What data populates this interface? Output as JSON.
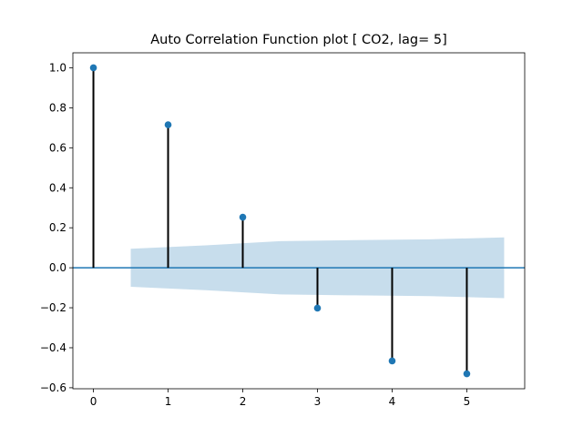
{
  "chart_data": {
    "type": "stem",
    "title": "Auto Correlation Function plot [ CO2, lag= 5]",
    "xlabel": "",
    "ylabel": "",
    "lags": [
      0,
      1,
      2,
      3,
      4,
      5
    ],
    "values": [
      1.0,
      0.715,
      0.253,
      -0.202,
      -0.466,
      -0.53
    ],
    "confidence_band": {
      "x": [
        0.5,
        1.5,
        2.5,
        3.5,
        4.5,
        5.5
      ],
      "upper": [
        0.095,
        0.112,
        0.133,
        0.138,
        0.142,
        0.152
      ],
      "lower": [
        -0.095,
        -0.112,
        -0.133,
        -0.138,
        -0.142,
        -0.152
      ]
    },
    "xlim": [
      -0.275,
      5.775
    ],
    "ylim": [
      -0.605,
      1.075
    ],
    "xticks": [
      0,
      1,
      2,
      3,
      4,
      5
    ],
    "xtick_labels": [
      "0",
      "1",
      "2",
      "3",
      "4",
      "5"
    ],
    "yticks": [
      1.0,
      0.8,
      0.6,
      0.4,
      0.2,
      0.0,
      -0.2,
      -0.4,
      -0.6
    ],
    "ytick_labels": [
      "1.0",
      "0.8",
      "0.6",
      "0.4",
      "0.2",
      "0.0",
      "−0.2",
      "−0.4",
      "−0.6"
    ],
    "grid": false,
    "colors": {
      "marker": "#1f77b4",
      "stem": "#000000",
      "baseline": "#1f77b4",
      "band": "#1f77b4"
    }
  }
}
